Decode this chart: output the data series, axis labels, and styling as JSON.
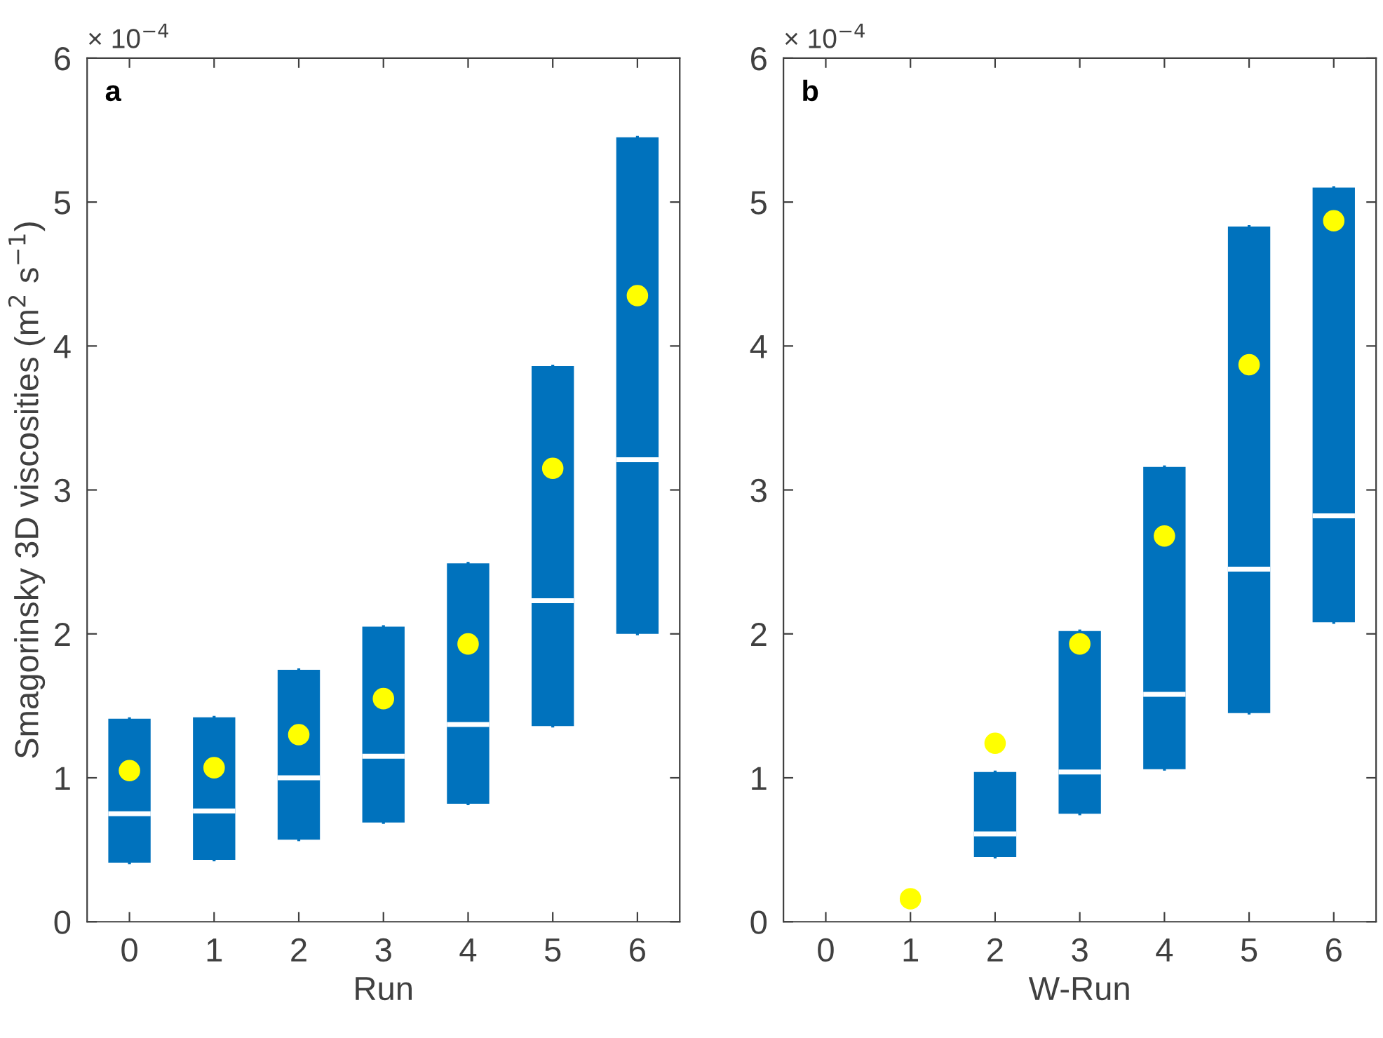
{
  "chart_data": [
    {
      "type": "box",
      "xlabel": "Run",
      "ylabel": "Smagorinsky 3D viscosities (m$^{2}$ s$^{−1}$)",
      "annotations": [
        "× 10$^{−4}$",
        "a"
      ],
      "categories": [
        "0",
        "1",
        "2",
        "3",
        "4",
        "5",
        "6"
      ],
      "ylim": [
        0,
        6
      ],
      "yticks": [
        0,
        1,
        2,
        3,
        4,
        5,
        6
      ],
      "grid": false,
      "legend": false,
      "series": [
        {
          "color": "#0072bd",
          "boxes": [
            {
              "q1": 0.41,
              "median": 0.75,
              "q3": 1.41
            },
            {
              "q1": 0.43,
              "median": 0.77,
              "q3": 1.42
            },
            {
              "q1": 0.57,
              "median": 1.0,
              "q3": 1.75
            },
            {
              "q1": 0.69,
              "median": 1.15,
              "q3": 2.05
            },
            {
              "q1": 0.82,
              "median": 1.37,
              "q3": 2.49
            },
            {
              "q1": 1.36,
              "median": 2.23,
              "q3": 3.86
            },
            {
              "q1": 2.0,
              "median": 3.21,
              "q3": 5.45
            }
          ]
        },
        {
          "type": "scatter",
          "color": "#ffff00",
          "marker": "circle",
          "x": [
            "0",
            "1",
            "2",
            "3",
            "4",
            "5",
            "6"
          ],
          "values": [
            1.05,
            1.07,
            1.3,
            1.55,
            1.93,
            3.15,
            4.35
          ]
        }
      ]
    },
    {
      "type": "box",
      "xlabel": "W-Run",
      "annotations": [
        "× 10$^{−4}$",
        "b"
      ],
      "categories": [
        "0",
        "1",
        "2",
        "3",
        "4",
        "5",
        "6"
      ],
      "ylim": [
        0,
        6
      ],
      "yticks": [
        0,
        1,
        2,
        3,
        4,
        5,
        6
      ],
      "grid": false,
      "legend": false,
      "series": [
        {
          "color": "#0072bd",
          "boxes": [
            null,
            null,
            {
              "q1": 0.45,
              "median": 0.61,
              "q3": 1.04
            },
            {
              "q1": 0.75,
              "median": 1.04,
              "q3": 2.02
            },
            {
              "q1": 1.06,
              "median": 1.58,
              "q3": 3.16
            },
            {
              "q1": 1.45,
              "median": 2.45,
              "q3": 4.83
            },
            {
              "q1": 2.08,
              "median": 2.82,
              "q3": 5.1
            }
          ]
        },
        {
          "type": "scatter",
          "color": "#ffff00",
          "marker": "circle",
          "x": [
            "0",
            "1",
            "2",
            "3",
            "4",
            "5",
            "6"
          ],
          "values": [
            null,
            0.16,
            1.24,
            1.93,
            2.68,
            3.87,
            4.87
          ]
        }
      ]
    }
  ]
}
